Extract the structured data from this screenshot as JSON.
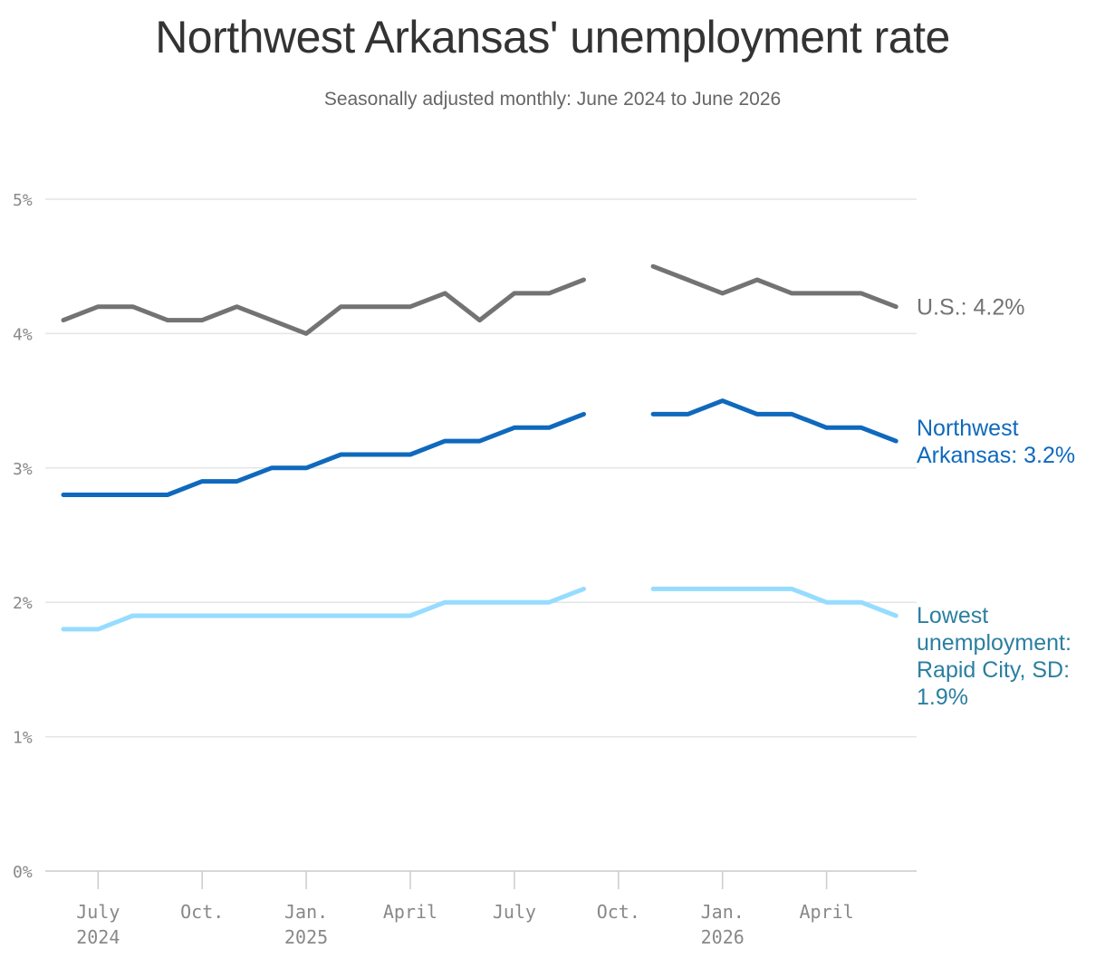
{
  "title": "Northwest Arkansas' unemployment rate",
  "subtitle": "Seasonally adjusted monthly: June 2024 to June 2026",
  "chart_data": {
    "type": "line",
    "title": "Northwest Arkansas' unemployment rate",
    "subtitle": "Seasonally adjusted monthly: June 2024 to June 2026",
    "x": [
      "2024-06",
      "2024-07",
      "2024-08",
      "2024-09",
      "2024-10",
      "2024-11",
      "2024-12",
      "2025-01",
      "2025-02",
      "2025-03",
      "2025-04",
      "2025-05",
      "2025-06",
      "2025-07",
      "2025-08",
      "2025-09",
      "2025-10",
      "2025-11",
      "2025-12",
      "2026-01",
      "2026-02",
      "2026-03",
      "2026-04",
      "2026-05",
      "2026-06"
    ],
    "ylim": [
      0,
      5
    ],
    "y_ticks": [
      "0%",
      "1%",
      "2%",
      "3%",
      "4%",
      "5%"
    ],
    "x_ticks": [
      {
        "x": "2024-07",
        "lines": [
          "July",
          "2024"
        ]
      },
      {
        "x": "2024-10",
        "lines": [
          "Oct."
        ]
      },
      {
        "x": "2025-01",
        "lines": [
          "Jan.",
          "2025"
        ]
      },
      {
        "x": "2025-04",
        "lines": [
          "April"
        ]
      },
      {
        "x": "2025-07",
        "lines": [
          "July"
        ]
      },
      {
        "x": "2025-10",
        "lines": [
          "Oct."
        ]
      },
      {
        "x": "2026-01",
        "lines": [
          "Jan.",
          "2026"
        ]
      },
      {
        "x": "2026-04",
        "lines": [
          "April"
        ]
      }
    ],
    "grid": true,
    "series": [
      {
        "key": "us",
        "label_lines": [
          "U.S.: 4.2%"
        ],
        "color": "#737373",
        "values": [
          4.1,
          4.2,
          4.2,
          4.1,
          4.1,
          4.2,
          4.1,
          4.0,
          4.2,
          4.2,
          4.2,
          4.3,
          4.1,
          4.3,
          4.3,
          4.4,
          null,
          4.5,
          4.4,
          4.3,
          4.4,
          4.3,
          4.3,
          4.3,
          4.2
        ]
      },
      {
        "key": "nwa",
        "label_lines": [
          "Northwest",
          "Arkansas: 3.2%"
        ],
        "color": "#0f69bd",
        "values": [
          2.8,
          2.8,
          2.8,
          2.8,
          2.9,
          2.9,
          3.0,
          3.0,
          3.1,
          3.1,
          3.1,
          3.2,
          3.2,
          3.3,
          3.3,
          3.4,
          null,
          3.4,
          3.4,
          3.5,
          3.4,
          3.4,
          3.3,
          3.3,
          3.2
        ]
      },
      {
        "key": "rapid",
        "label_lines": [
          "Lowest",
          "unemployment:",
          "Rapid City, SD:",
          "1.9%"
        ],
        "color": "#96dcff",
        "label_color": "#2b7fa0",
        "values": [
          1.8,
          1.8,
          1.9,
          1.9,
          1.9,
          1.9,
          1.9,
          1.9,
          1.9,
          1.9,
          1.9,
          2.0,
          2.0,
          2.0,
          2.0,
          2.1,
          null,
          2.1,
          2.1,
          2.1,
          2.1,
          2.1,
          2.0,
          2.0,
          1.9
        ]
      }
    ]
  }
}
